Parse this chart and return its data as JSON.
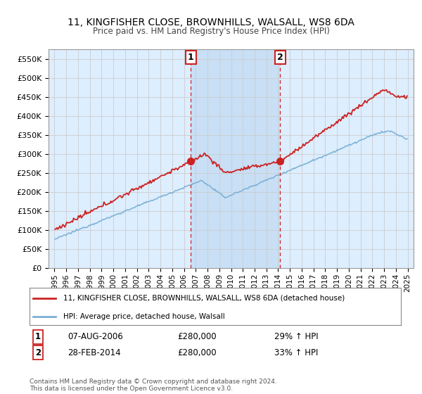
{
  "title": "11, KINGFISHER CLOSE, BROWNHILLS, WALSALL, WS8 6DA",
  "subtitle": "Price paid vs. HM Land Registry's House Price Index (HPI)",
  "ylabel_vals": [
    "£0",
    "£50K",
    "£100K",
    "£150K",
    "£200K",
    "£250K",
    "£300K",
    "£350K",
    "£400K",
    "£450K",
    "£500K",
    "£550K"
  ],
  "ylim": [
    0,
    575000
  ],
  "xlim_start": 1994.5,
  "xlim_end": 2025.5,
  "sale1_x": 2006.58,
  "sale1_y": 280000,
  "sale1_label": "1",
  "sale2_x": 2014.17,
  "sale2_y": 280000,
  "sale2_label": "2",
  "annotation1_date": "07-AUG-2006",
  "annotation1_price": "£280,000",
  "annotation1_hpi": "29% ↑ HPI",
  "annotation2_date": "28-FEB-2014",
  "annotation2_price": "£280,000",
  "annotation2_hpi": "33% ↑ HPI",
  "legend_line1": "11, KINGFISHER CLOSE, BROWNHILLS, WALSALL, WS8 6DA (detached house)",
  "legend_line2": "HPI: Average price, detached house, Walsall",
  "footer": "Contains HM Land Registry data © Crown copyright and database right 2024.\nThis data is licensed under the Open Government Licence v3.0.",
  "line_color_red": "#cc2222",
  "line_color_blue": "#7ab0d4",
  "bg_color": "#ddeeff",
  "shade_color": "#c8dff5",
  "plot_bg": "#ffffff",
  "grid_color": "#cccccc",
  "vline_color": "#cc2222",
  "marker_color_red": "#cc2222"
}
